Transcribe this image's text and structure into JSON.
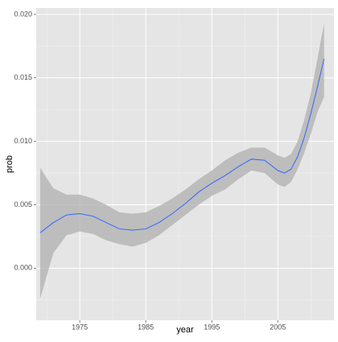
{
  "chart_data": {
    "type": "smooth",
    "x_label": "year",
    "y_label": "prob",
    "x": [
      1969,
      1971,
      1973,
      1975,
      1977,
      1979,
      1981,
      1983,
      1985,
      1987,
      1989,
      1991,
      1993,
      1995,
      1997,
      1999,
      2001,
      2003,
      2005,
      2006,
      2007,
      2008,
      2009,
      2010,
      2011,
      2012
    ],
    "values": [
      0.0028,
      0.0036,
      0.0042,
      0.0043,
      0.0041,
      0.0036,
      0.0031,
      0.003,
      0.0031,
      0.0036,
      0.0043,
      0.0051,
      0.006,
      0.0067,
      0.0073,
      0.008,
      0.0086,
      0.0085,
      0.0077,
      0.0075,
      0.0078,
      0.0088,
      0.0103,
      0.0122,
      0.0143,
      0.0165
    ],
    "lower": [
      -0.0024,
      0.0012,
      0.0026,
      0.0029,
      0.0027,
      0.0022,
      0.0019,
      0.0017,
      0.002,
      0.0026,
      0.0034,
      0.0042,
      0.005,
      0.0057,
      0.0062,
      0.007,
      0.0077,
      0.0075,
      0.0066,
      0.0064,
      0.0068,
      0.0078,
      0.0091,
      0.0106,
      0.0123,
      0.0135
    ],
    "upper": [
      0.0079,
      0.0063,
      0.0058,
      0.0058,
      0.0055,
      0.005,
      0.0044,
      0.0043,
      0.0044,
      0.0049,
      0.0055,
      0.0062,
      0.007,
      0.0077,
      0.0085,
      0.0091,
      0.0095,
      0.0095,
      0.0089,
      0.0087,
      0.009,
      0.01,
      0.0117,
      0.0138,
      0.0165,
      0.0193
    ],
    "color": "#3366ff",
    "band_color": "#b3b3b3",
    "xlim": [
      1968.4,
      2013.5
    ],
    "ylim": [
      -0.0041,
      0.0205
    ],
    "xticks": [
      1975,
      1985,
      1995,
      2005
    ],
    "yticks": [
      {
        "value": 0,
        "label": "0.000"
      },
      {
        "value": 0.005,
        "label": "0.005"
      },
      {
        "value": 0.01,
        "label": "0.010"
      },
      {
        "value": 0.015,
        "label": "0.015"
      },
      {
        "value": 0.02,
        "label": "0.020"
      }
    ],
    "xminor": [
      1970,
      1980,
      1990,
      2000,
      2010
    ],
    "yminor": [
      -0.0025,
      0.0025,
      0.0075,
      0.0125,
      0.0175
    ],
    "grid": true
  }
}
